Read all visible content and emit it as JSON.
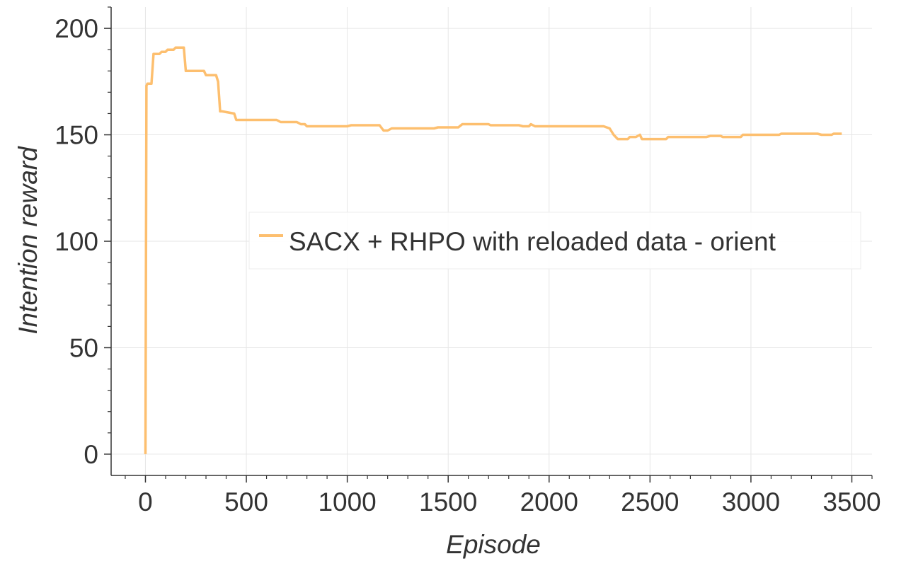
{
  "chart_data": {
    "type": "line",
    "xlabel": "Episode",
    "ylabel": "Intention reward",
    "xlim": [
      -170,
      3600
    ],
    "ylim": [
      -10,
      210
    ],
    "xticks": [
      0,
      500,
      1000,
      1500,
      2000,
      2500,
      3000,
      3500
    ],
    "yticks": [
      0,
      50,
      100,
      150,
      200
    ],
    "xtick_labels": [
      "0",
      "500",
      "1000",
      "1500",
      "2000",
      "2500",
      "3000",
      "3500"
    ],
    "ytick_labels": [
      "0",
      "50",
      "100",
      "150",
      "200"
    ],
    "grid": true,
    "legend_position": "center-right",
    "series": [
      {
        "name": "SACX + RHPO with reloaded data - orient",
        "color": "#fdbf6f",
        "x": [
          0,
          5,
          10,
          30,
          40,
          70,
          80,
          100,
          110,
          140,
          150,
          190,
          200,
          290,
          300,
          350,
          360,
          370,
          380,
          440,
          450,
          650,
          670,
          750,
          770,
          790,
          800,
          1000,
          1020,
          1160,
          1180,
          1200,
          1220,
          1240,
          1430,
          1450,
          1550,
          1570,
          1700,
          1710,
          1850,
          1870,
          1900,
          1910,
          1930,
          1950,
          2250,
          2270,
          2300,
          2320,
          2340,
          2350,
          2390,
          2400,
          2430,
          2450,
          2460,
          2480,
          2490,
          2580,
          2590,
          2780,
          2800,
          2850,
          2860,
          2950,
          2960,
          3140,
          3150,
          3330,
          3350,
          3400,
          3410,
          3450
        ],
        "values": [
          0,
          173,
          174,
          174,
          188,
          188,
          189,
          189,
          190,
          190,
          191,
          191,
          180,
          180,
          178,
          178,
          175,
          161,
          161,
          160,
          157,
          157,
          156,
          156,
          155,
          155,
          154,
          154,
          154.5,
          154.5,
          152,
          152,
          153,
          153,
          153,
          153.5,
          153.5,
          155,
          155,
          154.5,
          154.5,
          154,
          154,
          155,
          154,
          154,
          154,
          154,
          153,
          150,
          148,
          148,
          148,
          149,
          149,
          150,
          148,
          148,
          148,
          148,
          149,
          149,
          149.5,
          149.5,
          149,
          149,
          150,
          150,
          150.5,
          150.5,
          150,
          150,
          150.5,
          150.5
        ]
      }
    ]
  }
}
